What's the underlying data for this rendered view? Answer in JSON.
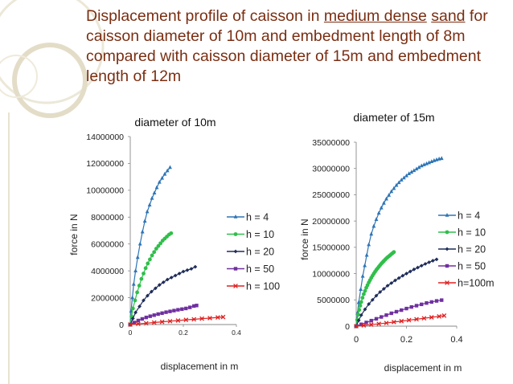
{
  "slide": {
    "title_parts": [
      {
        "text": "Displacement profile of caisson in ",
        "underline": false
      },
      {
        "text": "medium dense",
        "underline": true
      },
      {
        "text": " ",
        "underline": false
      },
      {
        "text": "sand",
        "underline": true
      },
      {
        "text": " for caisson diameter of 10m and embedment length of 8m compared with caisson diameter of 15m and embedment length of 12m",
        "underline": false
      }
    ],
    "accent_colors": {
      "title": "#7a2e12",
      "decor": "#e8e3cf"
    }
  },
  "chart_data": [
    {
      "type": "scatter",
      "title": "diameter of 10m",
      "xlabel": "displacement in m",
      "ylabel": "force in N",
      "xlim": [
        0,
        0.4
      ],
      "ylim": [
        0,
        14000000
      ],
      "x_ticks": [
        0,
        0.2,
        0.4
      ],
      "x_tick_labels": [
        "0",
        "0.2",
        "0.4"
      ],
      "y_ticks": [
        0,
        2000000,
        4000000,
        6000000,
        8000000,
        10000000,
        12000000,
        14000000
      ],
      "y_tick_labels": [
        "0",
        "2000000",
        "4000000",
        "6000000",
        "8000000",
        "10000000",
        "12000000",
        "14000000"
      ],
      "grid": false,
      "legend_position": "right",
      "series": [
        {
          "name": "h = 4",
          "color": "#2e75b6",
          "marker": "triangle",
          "x": [
            0,
            0.003,
            0.008,
            0.013,
            0.02,
            0.028,
            0.037,
            0.046,
            0.055,
            0.064,
            0.073,
            0.082,
            0.091,
            0.1,
            0.11,
            0.12,
            0.13,
            0.14,
            0.15
          ],
          "y": [
            0,
            1000000,
            2000000,
            3000000,
            4000000,
            5000000,
            6000000,
            6900000,
            7700000,
            8400000,
            8900000,
            9400000,
            9800000,
            10200000,
            10600000,
            10900000,
            11200000,
            11450000,
            11700000
          ]
        },
        {
          "name": "h = 10",
          "color": "#2fbf4a",
          "marker": "circle",
          "x": [
            0,
            0.005,
            0.01,
            0.018,
            0.026,
            0.034,
            0.042,
            0.05,
            0.058,
            0.066,
            0.074,
            0.082,
            0.09,
            0.098,
            0.106,
            0.114,
            0.122,
            0.13,
            0.138,
            0.146,
            0.154
          ],
          "y": [
            0,
            600000,
            1200000,
            1800000,
            2400000,
            2900000,
            3400000,
            3800000,
            4200000,
            4550000,
            4850000,
            5150000,
            5400000,
            5650000,
            5850000,
            6050000,
            6250000,
            6400000,
            6550000,
            6700000,
            6800000
          ]
        },
        {
          "name": "h = 20",
          "color": "#1f2d5a",
          "marker": "diamond",
          "x": [
            0,
            0.01,
            0.02,
            0.035,
            0.05,
            0.065,
            0.08,
            0.095,
            0.11,
            0.125,
            0.14,
            0.155,
            0.17,
            0.185,
            0.2,
            0.215,
            0.23,
            0.245
          ],
          "y": [
            0,
            450000,
            900000,
            1350000,
            1800000,
            2150000,
            2450000,
            2700000,
            2950000,
            3150000,
            3350000,
            3500000,
            3650000,
            3800000,
            3950000,
            4050000,
            4150000,
            4300000
          ]
        },
        {
          "name": "h = 50",
          "color": "#7030a0",
          "marker": "square",
          "x": [
            0,
            0.015,
            0.03,
            0.045,
            0.06,
            0.075,
            0.09,
            0.105,
            0.12,
            0.135,
            0.15,
            0.165,
            0.18,
            0.195,
            0.21,
            0.225,
            0.24,
            0.25
          ],
          "y": [
            0,
            150000,
            300000,
            420000,
            530000,
            620000,
            700000,
            780000,
            850000,
            920000,
            980000,
            1040000,
            1100000,
            1150000,
            1200000,
            1280000,
            1380000,
            1420000
          ]
        },
        {
          "name": "h = 100",
          "color": "#e02020",
          "marker": "x",
          "x": [
            0,
            0.03,
            0.06,
            0.09,
            0.12,
            0.15,
            0.18,
            0.21,
            0.24,
            0.27,
            0.3,
            0.33,
            0.35
          ],
          "y": [
            0,
            50000,
            100000,
            150000,
            200000,
            250000,
            300000,
            350000,
            390000,
            440000,
            480000,
            530000,
            560000
          ]
        }
      ]
    },
    {
      "type": "scatter",
      "title": "diameter of 15m",
      "xlabel": "displacement in m",
      "ylabel": "force in N",
      "xlim": [
        0,
        0.4
      ],
      "ylim": [
        0,
        35000000
      ],
      "x_ticks": [
        0,
        0.2,
        0.4
      ],
      "x_tick_labels": [
        "0",
        "0.2",
        "0.4"
      ],
      "y_ticks": [
        0,
        5000000,
        10000000,
        15000000,
        20000000,
        25000000,
        30000000,
        35000000
      ],
      "y_tick_labels": [
        "0",
        "5000000",
        "10000000",
        "15000000",
        "20000000",
        "25000000",
        "30000000",
        "35000000"
      ],
      "grid": false,
      "legend_position": "right",
      "series": [
        {
          "name": "h = 4",
          "color": "#2e75b6",
          "marker": "triangle",
          "x": [
            0,
            0.005,
            0.01,
            0.018,
            0.026,
            0.034,
            0.042,
            0.05,
            0.06,
            0.07,
            0.08,
            0.09,
            0.1,
            0.11,
            0.12,
            0.13,
            0.14,
            0.15,
            0.16,
            0.17,
            0.18,
            0.19,
            0.2,
            0.21,
            0.22,
            0.23,
            0.24,
            0.25,
            0.26,
            0.27,
            0.28,
            0.29,
            0.3,
            0.31,
            0.32,
            0.33,
            0.34
          ],
          "y": [
            0,
            2500000,
            4500000,
            7000000,
            9500000,
            11500000,
            13500000,
            15500000,
            17500000,
            19000000,
            20300000,
            21500000,
            22500000,
            23400000,
            24200000,
            24900000,
            25600000,
            26200000,
            26800000,
            27300000,
            27800000,
            28200000,
            28600000,
            29000000,
            29300000,
            29600000,
            29900000,
            30200000,
            30500000,
            30700000,
            30900000,
            31100000,
            31300000,
            31500000,
            31650000,
            31800000,
            31900000
          ]
        },
        {
          "name": "h = 10",
          "color": "#2fbf4a",
          "marker": "circle",
          "x": [
            0,
            0.004,
            0.008,
            0.012,
            0.016,
            0.02,
            0.025,
            0.03,
            0.035,
            0.04,
            0.045,
            0.05,
            0.055,
            0.06,
            0.065,
            0.07,
            0.075,
            0.08,
            0.085,
            0.09,
            0.095,
            0.1,
            0.105,
            0.11,
            0.115,
            0.12,
            0.125,
            0.13,
            0.135,
            0.14,
            0.145,
            0.15
          ],
          "y": [
            0,
            1200000,
            2200000,
            3100000,
            3900000,
            4600000,
            5400000,
            6100000,
            6700000,
            7300000,
            7800000,
            8300000,
            8750000,
            9200000,
            9600000,
            10000000,
            10350000,
            10700000,
            11000000,
            11300000,
            11600000,
            11900000,
            12150000,
            12400000,
            12650000,
            12900000,
            13100000,
            13300000,
            13500000,
            13700000,
            13900000,
            14100000
          ]
        },
        {
          "name": "h = 20",
          "color": "#1f2d5a",
          "marker": "diamond",
          "x": [
            0,
            0.01,
            0.02,
            0.035,
            0.05,
            0.065,
            0.08,
            0.095,
            0.11,
            0.125,
            0.14,
            0.155,
            0.17,
            0.185,
            0.2,
            0.215,
            0.23,
            0.245,
            0.26,
            0.275,
            0.29,
            0.305,
            0.32
          ],
          "y": [
            0,
            1100000,
            2100000,
            3200000,
            4200000,
            5000000,
            5800000,
            6500000,
            7100000,
            7700000,
            8200000,
            8700000,
            9150000,
            9600000,
            10000000,
            10400000,
            10800000,
            11150000,
            11500000,
            11850000,
            12150000,
            12450000,
            12700000
          ]
        },
        {
          "name": "h = 50",
          "color": "#7030a0",
          "marker": "square",
          "x": [
            0,
            0.02,
            0.04,
            0.06,
            0.08,
            0.1,
            0.12,
            0.14,
            0.16,
            0.18,
            0.2,
            0.22,
            0.24,
            0.26,
            0.28,
            0.3,
            0.32,
            0.34
          ],
          "y": [
            0,
            350000,
            700000,
            1050000,
            1400000,
            1750000,
            2100000,
            2450000,
            2750000,
            3050000,
            3350000,
            3650000,
            3900000,
            4150000,
            4400000,
            4600000,
            4800000,
            4950000
          ]
        },
        {
          "name": "h=100m",
          "color": "#e02020",
          "marker": "x",
          "x": [
            0,
            0.03,
            0.06,
            0.09,
            0.12,
            0.15,
            0.18,
            0.21,
            0.24,
            0.27,
            0.3,
            0.33,
            0.35
          ],
          "y": [
            0,
            150000,
            300000,
            450000,
            600000,
            780000,
            960000,
            1140000,
            1320000,
            1500000,
            1680000,
            1860000,
            2000000
          ]
        }
      ]
    }
  ]
}
